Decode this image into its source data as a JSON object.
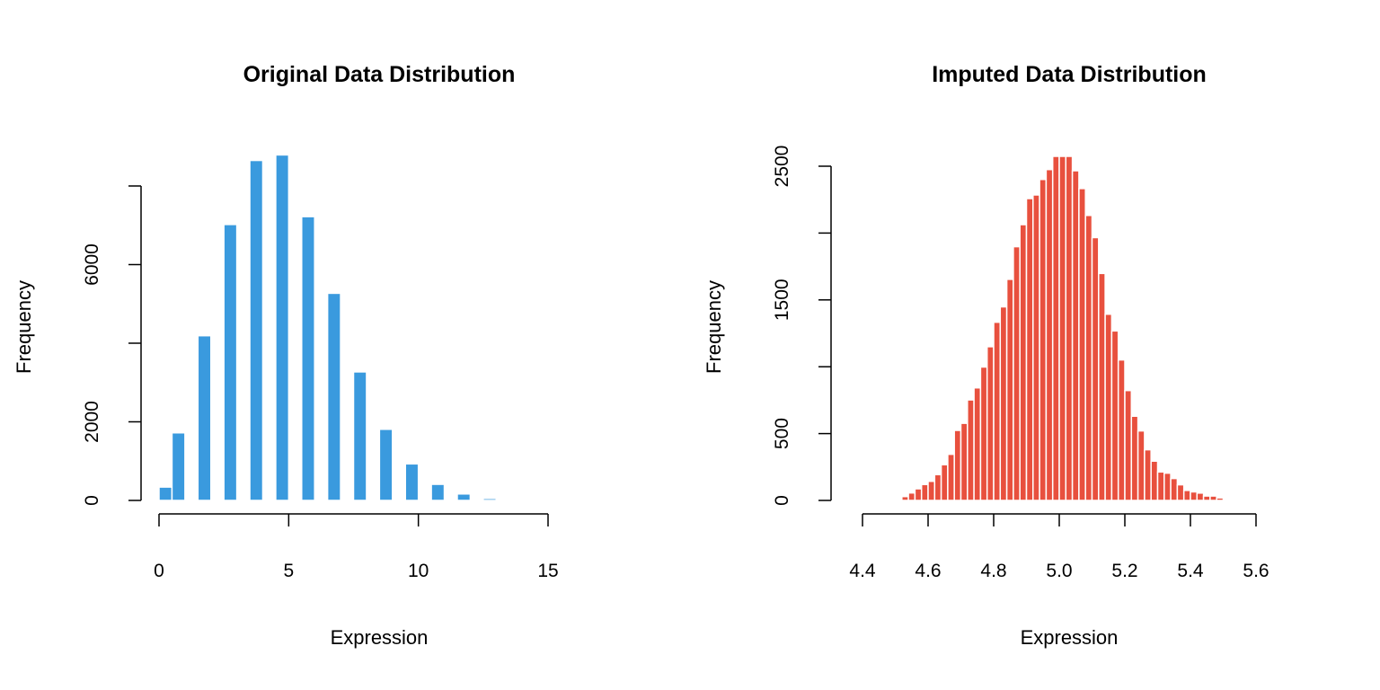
{
  "chart_data": [
    {
      "type": "bar",
      "title": "Original Data Distribution",
      "xlabel": "Expression",
      "ylabel": "Frequency",
      "xlim": [
        0,
        15
      ],
      "x_ticks": [
        0,
        5,
        10,
        15
      ],
      "y_ticks": [
        0,
        2000,
        6000
      ],
      "y_tick_marks": [
        0,
        2000,
        4000,
        6000,
        8000
      ],
      "color": "#3a9ade",
      "bins": [
        {
          "from": 0.0,
          "to": 0.5,
          "count": 340
        },
        {
          "from": 0.5,
          "to": 1.0,
          "count": 1720
        },
        {
          "from": 1.5,
          "to": 2.0,
          "count": 4190
        },
        {
          "from": 2.5,
          "to": 3.0,
          "count": 7020
        },
        {
          "from": 3.5,
          "to": 4.0,
          "count": 8650
        },
        {
          "from": 4.5,
          "to": 5.0,
          "count": 8790
        },
        {
          "from": 5.5,
          "to": 6.0,
          "count": 7220
        },
        {
          "from": 6.5,
          "to": 7.0,
          "count": 5270
        },
        {
          "from": 7.5,
          "to": 8.0,
          "count": 3270
        },
        {
          "from": 8.5,
          "to": 9.0,
          "count": 1810
        },
        {
          "from": 9.5,
          "to": 10.0,
          "count": 930
        },
        {
          "from": 10.5,
          "to": 11.0,
          "count": 410
        },
        {
          "from": 11.5,
          "to": 12.0,
          "count": 165
        },
        {
          "from": 12.5,
          "to": 13.0,
          "count": 50
        }
      ]
    },
    {
      "type": "bar",
      "title": "Imputed Data Distribution",
      "xlabel": "Expression",
      "ylabel": "Frequency",
      "xlim": [
        4.4,
        5.6
      ],
      "x_ticks": [
        4.4,
        4.6,
        4.8,
        5.0,
        5.2,
        5.4,
        5.6
      ],
      "x_tick_labels": [
        "4.4",
        "4.6",
        "4.8",
        "5.0",
        "5.2",
        "5.4",
        "5.6"
      ],
      "y_ticks": [
        0,
        500,
        1500,
        2500
      ],
      "y_tick_marks": [
        0,
        500,
        1000,
        1500,
        2000,
        2500
      ],
      "color": "#e8503e",
      "bin_start": 4.5,
      "bin_width": 0.02,
      "counts": [
        10,
        29,
        56,
        87,
        119,
        143,
        193,
        267,
        345,
        524,
        577,
        752,
        842,
        998,
        1150,
        1333,
        1448,
        1654,
        1898,
        2063,
        2258,
        2285,
        2401,
        2475,
        2580,
        2580,
        2580,
        2466,
        2333,
        2132,
        1966,
        1698,
        1393,
        1268,
        1051,
        822,
        630,
        520,
        379,
        294,
        213,
        204,
        164,
        117,
        75,
        64,
        55,
        33,
        33,
        19
      ]
    }
  ]
}
